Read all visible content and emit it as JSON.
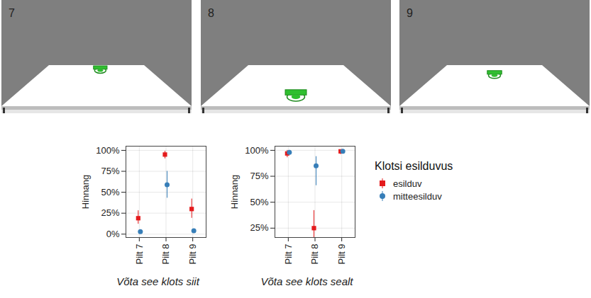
{
  "images": [
    {
      "label": "7"
    },
    {
      "label": "8"
    },
    {
      "label": "9"
    }
  ],
  "chart_data": [
    {
      "type": "scatter",
      "caption": "Võta see klots siit",
      "y_label": "Hinnang",
      "categories": [
        "Pilt 7",
        "Pilt 8",
        "Pilt 9"
      ],
      "series": [
        {
          "name": "esilduv",
          "color": "#e41a1c",
          "marker": "square",
          "values": [
            19,
            95,
            30
          ],
          "lower": [
            12,
            90,
            19
          ],
          "upper": [
            28,
            99,
            42
          ]
        },
        {
          "name": "mitteesilduv",
          "color": "#377eb8",
          "marker": "circle",
          "values": [
            3,
            59,
            4
          ],
          "lower": [
            1,
            43,
            2
          ],
          "upper": [
            5,
            75,
            6
          ]
        }
      ],
      "ylim": [
        -4,
        105
      ],
      "yticks": [
        {
          "value": 0,
          "label": "0%"
        },
        {
          "value": 25,
          "label": "25%"
        },
        {
          "value": 50,
          "label": "50%"
        },
        {
          "value": 75,
          "label": "75%"
        },
        {
          "value": 100,
          "label": "100%"
        }
      ],
      "grid": true
    },
    {
      "type": "scatter",
      "caption": "Võta see klots sealt",
      "y_label": "Hinnang",
      "categories": [
        "Pilt 7",
        "Pilt 8",
        "Pilt 9"
      ],
      "series": [
        {
          "name": "esilduv",
          "color": "#e41a1c",
          "marker": "square",
          "values": [
            97,
            25,
            99
          ],
          "lower": [
            93,
            13,
            96
          ],
          "upper": [
            100,
            42,
            100
          ]
        },
        {
          "name": "mitteesilduv",
          "color": "#377eb8",
          "marker": "circle",
          "values": [
            98,
            85,
            99
          ],
          "lower": [
            96,
            66,
            97
          ],
          "upper": [
            100,
            94,
            100
          ]
        }
      ],
      "ylim": [
        16,
        104
      ],
      "yticks": [
        {
          "value": 25,
          "label": "25%"
        },
        {
          "value": 50,
          "label": "50%"
        },
        {
          "value": 75,
          "label": "75%"
        },
        {
          "value": 100,
          "label": "100%"
        }
      ],
      "grid": true,
      "legend": "right",
      "legend_title": "Klotsi esilduvus"
    }
  ]
}
